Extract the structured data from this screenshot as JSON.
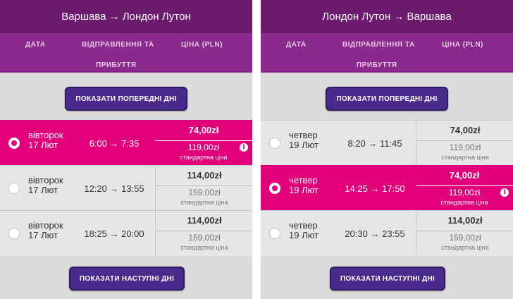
{
  "left": {
    "route": "Варшава → Лондон Лутон",
    "headers": {
      "date": "ДАТА",
      "departure": "ВІДПРАВЛЕННЯ ТА",
      "arrival": "ПРИБУТТЯ",
      "price": "ЦІНА (PLN)"
    },
    "prev_button": "ПОКАЗАТИ ПОПЕРЕДНІ ДНІ",
    "next_button": "ПОКАЗАТИ НАСТУПНІ ДНІ",
    "rows": [
      {
        "weekday": "вівторок",
        "date": "17 Лют",
        "time": "6:00 → 7:35",
        "price": "74,00zł",
        "std_price": "119,00zł",
        "std_label": "стандартна ціна",
        "selected": true
      },
      {
        "weekday": "вівторок",
        "date": "17 Лют",
        "time": "12:20 → 13:55",
        "price": "114,00zł",
        "std_price": "159,00zł",
        "std_label": "стандартна ціна",
        "selected": false
      },
      {
        "weekday": "вівторок",
        "date": "17 Лют",
        "time": "18:25 → 20:00",
        "price": "114,00zł",
        "std_price": "159,00zł",
        "std_label": "стандартна ціна",
        "selected": false
      }
    ]
  },
  "right": {
    "route": "Лондон Лутон → Варшава",
    "headers": {
      "date": "ДАТА",
      "departure": "ВІДПРАВЛЕННЯ ТА",
      "arrival": "ПРИБУТТЯ",
      "price": "ЦІНА (PLN)"
    },
    "prev_button": "ПОКАЗАТИ ПОПЕРЕДНІ ДНІ",
    "next_button": "ПОКАЗАТИ НАСТУПНІ ДНІ",
    "rows": [
      {
        "weekday": "четвер",
        "date": "19 Лют",
        "time": "8:20 → 11:45",
        "price": "74,00zł",
        "std_price": "119,00zł",
        "std_label": "стандартна ціна",
        "selected": false
      },
      {
        "weekday": "четвер",
        "date": "19 Лют",
        "time": "14:25 → 17:50",
        "price": "74,00zł",
        "std_price": "119,00zł",
        "std_label": "стандартна ціна",
        "selected": true
      },
      {
        "weekday": "четвер",
        "date": "19 Лют",
        "time": "20:30 → 23:55",
        "price": "114,00zł",
        "std_price": "159,00zł",
        "std_label": "стандартна ціна",
        "selected": false
      }
    ]
  },
  "info_icon_glyph": "i",
  "colors": {
    "header_dark": "#6b1a6d",
    "header_light": "#8a2a8c",
    "selected_row": "#e2007a",
    "button": "#4a2a8c"
  }
}
